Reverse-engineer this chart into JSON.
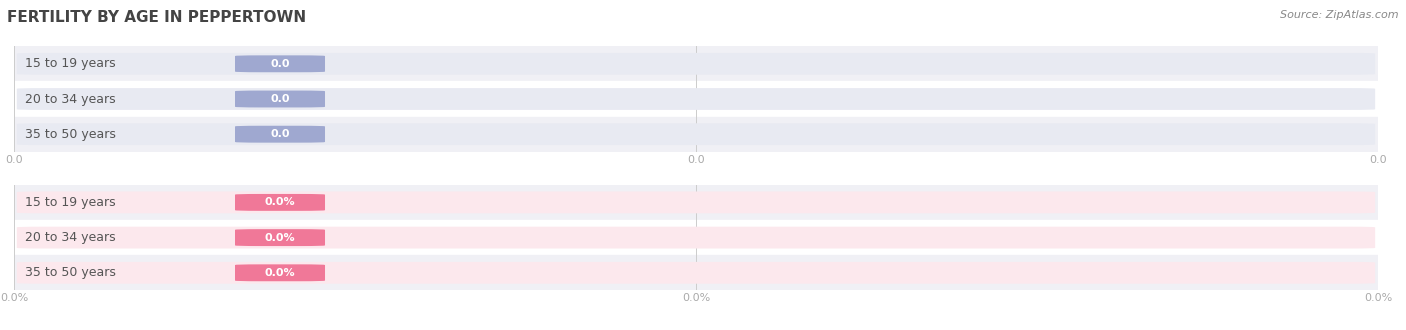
{
  "title": "FERTILITY BY AGE IN PEPPERTOWN",
  "source_text": "Source: ZipAtlas.com",
  "top_chart": {
    "categories": [
      "15 to 19 years",
      "20 to 34 years",
      "35 to 50 years"
    ],
    "values": [
      0.0,
      0.0,
      0.0
    ],
    "bar_bg_color": "#e8eaf2",
    "bar_value_color": "#9fa8d0",
    "tick_label_color": "#aaaaaa",
    "value_label": "0.0",
    "x_tick_labels": [
      "0.0",
      "0.0",
      "0.0"
    ]
  },
  "bottom_chart": {
    "categories": [
      "15 to 19 years",
      "20 to 34 years",
      "35 to 50 years"
    ],
    "values": [
      0.0,
      0.0,
      0.0
    ],
    "bar_bg_color": "#fce8ed",
    "bar_value_color": "#f07898",
    "tick_label_color": "#aaaaaa",
    "value_label": "0.0%",
    "x_tick_labels": [
      "0.0%",
      "0.0%",
      "0.0%"
    ]
  },
  "bg_color": "#ffffff",
  "row_colors": [
    "#f0f0f5",
    "#ffffff",
    "#f0f0f5"
  ],
  "title_color": "#444444",
  "title_fontsize": 11,
  "source_fontsize": 8,
  "label_fontsize": 9,
  "value_fontsize": 8,
  "tick_fontsize": 8
}
